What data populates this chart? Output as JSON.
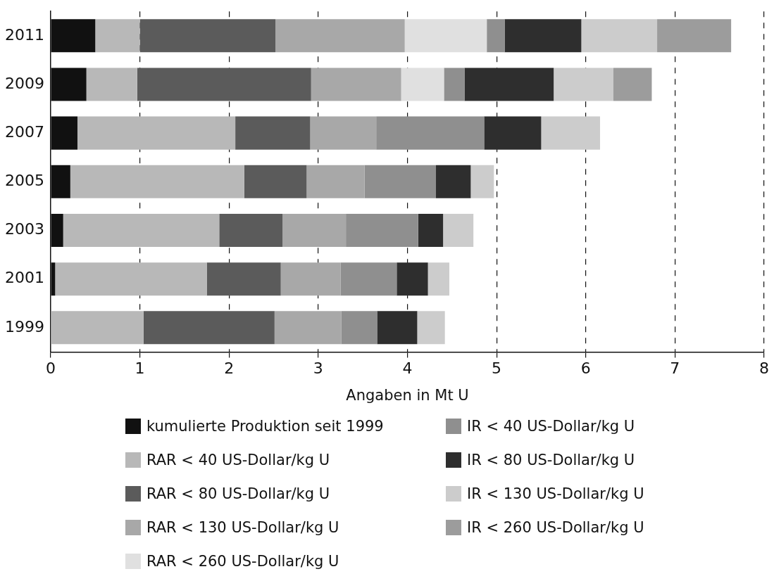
{
  "chart_data": {
    "type": "bar",
    "orientation": "horizontal",
    "stacked": true,
    "xlabel": "Angaben in Mt U",
    "categories": [
      "2011",
      "2009",
      "2007",
      "2005",
      "2003",
      "2001",
      "1999"
    ],
    "xlim": [
      0,
      8
    ],
    "xticks": [
      0,
      1,
      2,
      3,
      4,
      5,
      6,
      7,
      8
    ],
    "grid": "x",
    "legend": "bottom",
    "series": [
      {
        "name": "kumulierte Produktion seit 1999",
        "color": "#111111",
        "values": [
          0.5,
          0.4,
          0.3,
          0.22,
          0.14,
          0.05,
          0
        ]
      },
      {
        "name": "RAR < 40 US-Dollar/kg U",
        "color": "#b8b8b8",
        "values": [
          0.5,
          0.57,
          1.77,
          1.95,
          1.75,
          1.7,
          1.04
        ]
      },
      {
        "name": "RAR < 80 US-Dollar/kg U",
        "color": "#5b5b5b",
        "values": [
          1.52,
          1.95,
          0.84,
          0.7,
          0.71,
          0.83,
          1.47
        ]
      },
      {
        "name": "RAR < 130 US-Dollar/kg U",
        "color": "#a8a8a8",
        "values": [
          1.45,
          1.01,
          0.74,
          0.65,
          0.71,
          0.67,
          0.75
        ]
      },
      {
        "name": "RAR < 260 US-Dollar/kg U",
        "color": "#e0e0e0",
        "values": [
          0.92,
          0.48,
          0,
          0,
          0,
          0,
          0
        ]
      },
      {
        "name": "IR < 40 US-Dollar/kg U",
        "color": "#8f8f8f",
        "values": [
          0.2,
          0.23,
          1.21,
          0.8,
          0.81,
          0.63,
          0.4
        ]
      },
      {
        "name": "IR < 80 US-Dollar/kg U",
        "color": "#2e2e2e",
        "values": [
          0.86,
          1.0,
          0.64,
          0.39,
          0.28,
          0.35,
          0.45
        ]
      },
      {
        "name": "IR < 130 US-Dollar/kg U",
        "color": "#cccccc",
        "values": [
          0.85,
          0.67,
          0.66,
          0.26,
          0.34,
          0.24,
          0.31
        ]
      },
      {
        "name": "IR < 260 US-Dollar/kg U",
        "color": "#9c9c9c",
        "values": [
          0.83,
          0.43,
          0,
          0,
          0,
          0,
          0
        ]
      }
    ]
  }
}
